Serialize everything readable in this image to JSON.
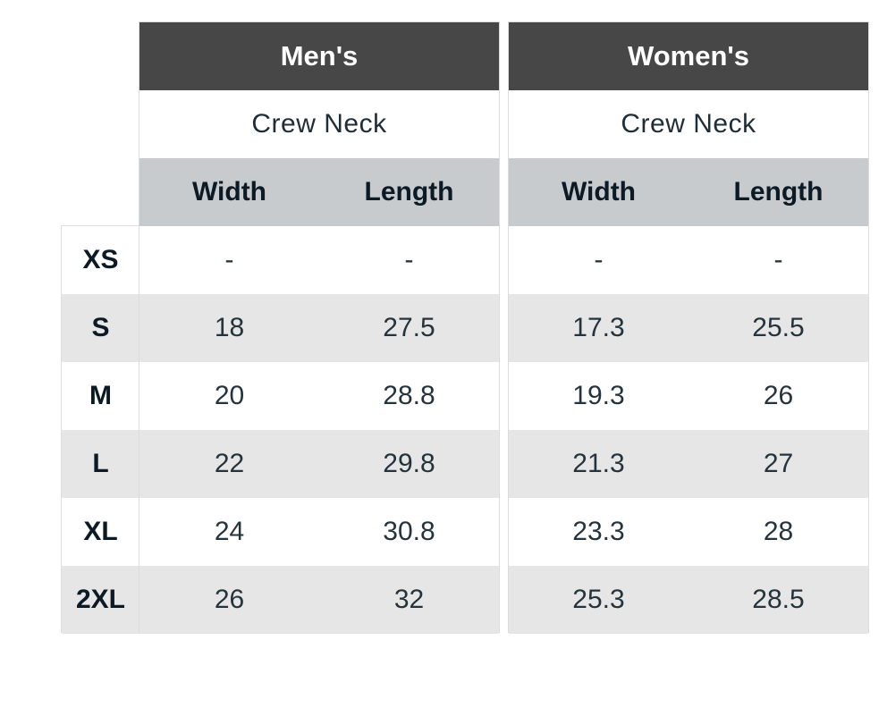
{
  "sizes": [
    "XS",
    "S",
    "M",
    "L",
    "XL",
    "2XL"
  ],
  "mens": {
    "title": "Men's",
    "style": "Crew Neck",
    "col_width": "Width",
    "col_length": "Length",
    "rows": [
      {
        "width": "-",
        "length": "-"
      },
      {
        "width": "18",
        "length": "27.5"
      },
      {
        "width": "20",
        "length": "28.8"
      },
      {
        "width": "22",
        "length": "29.8"
      },
      {
        "width": "24",
        "length": "30.8"
      },
      {
        "width": "26",
        "length": "32"
      }
    ]
  },
  "womens": {
    "title": "Women's",
    "style": "Crew Neck",
    "col_width": "Width",
    "col_length": "Length",
    "rows": [
      {
        "width": "-",
        "length": "-"
      },
      {
        "width": "17.3",
        "length": "25.5"
      },
      {
        "width": "19.3",
        "length": "26"
      },
      {
        "width": "21.3",
        "length": "27"
      },
      {
        "width": "23.3",
        "length": "28"
      },
      {
        "width": "25.3",
        "length": "28.5"
      }
    ]
  },
  "colors": {
    "header_bg": "#474747",
    "subheader_bg": "#c8cbcd",
    "stripe_bg": "#e6e6e6"
  }
}
